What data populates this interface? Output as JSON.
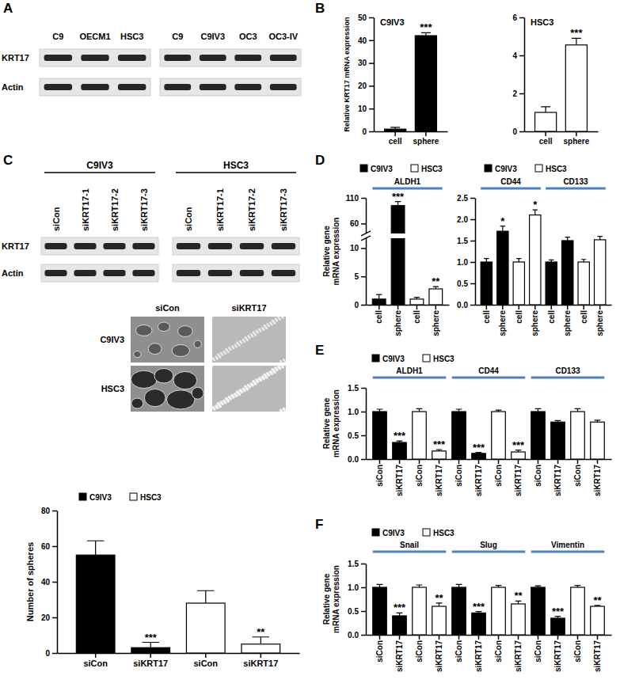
{
  "panel_letters": [
    "A",
    "B",
    "C",
    "D",
    "E",
    "F"
  ],
  "western_blots": [
    {
      "row_labels": [
        "KRT17",
        "Actin"
      ],
      "blots": [
        {
          "columns": [
            "C9",
            "OECM1",
            "HSC3"
          ]
        },
        {
          "columns": [
            "C9",
            "C9IV3",
            "OC3",
            "OC3-IV"
          ]
        }
      ]
    },
    {
      "row_labels": [
        "KRT17",
        "Actin"
      ],
      "blots": [
        {
          "group": "C9IV3",
          "columns": [
            "siCon",
            "siKRT17-1",
            "siKRT17-2",
            "siKRT17-3"
          ]
        },
        {
          "group": "HSC3",
          "columns": [
            "siCon",
            "siKRT17-1",
            "siKRT17-2",
            "siKRT17-3"
          ]
        }
      ]
    }
  ],
  "micrographs": {
    "columns": [
      "siCon",
      "siKRT17"
    ],
    "rows": [
      "C9IV3",
      "HSC3"
    ]
  },
  "chart_data": [
    {
      "type": "bar",
      "title": "C9IV3",
      "y_label": "Relative KRT17 mRNA expression",
      "categories": [
        "cell",
        "sphere"
      ],
      "ylim": [
        0,
        50
      ],
      "yticks": [
        0,
        10,
        20,
        30,
        40,
        50
      ],
      "series": [
        {
          "color": "#000000",
          "values": [
            1,
            42
          ],
          "errors": [
            0.8,
            1.3
          ],
          "significance": [
            null,
            "***"
          ]
        }
      ]
    },
    {
      "type": "bar",
      "title": "HSC3",
      "categories": [
        "cell",
        "sphere"
      ],
      "ylim": [
        0,
        6
      ],
      "yticks": [
        0,
        2,
        4,
        6
      ],
      "series": [
        {
          "color": "#ffffff",
          "values": [
            1,
            4.55
          ],
          "errors": [
            0.3,
            0.35
          ],
          "significance": [
            null,
            "***"
          ]
        }
      ]
    },
    {
      "type": "bar",
      "y_label": "Number of spheres",
      "legend": "top",
      "categories": [
        "siCon",
        "siKRT17",
        "siCon",
        "siKRT17"
      ],
      "ylim": [
        0,
        80
      ],
      "yticks": [
        0,
        20,
        40,
        60,
        80
      ],
      "series": [
        {
          "name": "C9IV3",
          "color": "#000000",
          "values": [
            55,
            3,
            null,
            null
          ],
          "errors": [
            8,
            3,
            null,
            null
          ],
          "significance": [
            null,
            "***",
            null,
            null
          ]
        },
        {
          "name": "HSC3",
          "color": "#ffffff",
          "values": [
            null,
            null,
            28,
            5
          ],
          "errors": [
            null,
            null,
            7,
            4
          ],
          "significance": [
            null,
            null,
            null,
            "**"
          ]
        }
      ]
    },
    {
      "type": "bar",
      "y_label": "Relative gene mRNA expression",
      "legend": "top",
      "groups": [
        "ALDH1"
      ],
      "categories": [
        "cell",
        "sphere",
        "cell",
        "sphere"
      ],
      "ylim": [
        0,
        110
      ],
      "ybreak": [
        10,
        60
      ],
      "yticks": [
        0,
        5,
        10,
        60,
        110
      ],
      "series": [
        {
          "name": "C9IV3",
          "color": "#000000",
          "values": [
            1,
            95,
            null,
            null
          ],
          "errors": [
            0.8,
            8,
            null,
            null
          ],
          "significance": [
            null,
            "***",
            null,
            null
          ]
        },
        {
          "name": "HSC3",
          "color": "#ffffff",
          "values": [
            null,
            null,
            1,
            2.8
          ],
          "errors": [
            null,
            null,
            0.3,
            0.4
          ],
          "significance": [
            null,
            null,
            null,
            "**"
          ]
        }
      ]
    },
    {
      "type": "bar",
      "legend": "top",
      "groups": [
        "CD44",
        "CD133"
      ],
      "categories": [
        "cell",
        "sphere",
        "cell",
        "sphere",
        "cell",
        "sphere",
        "cell",
        "sphere"
      ],
      "ylim": [
        0,
        2.5
      ],
      "yticks": [
        {
          "value": 0,
          "label": "0.0"
        },
        0.5,
        {
          "value": 1,
          "label": "1.0"
        },
        1.5,
        {
          "value": 2,
          "label": "2.0"
        },
        2.5
      ],
      "series": [
        {
          "name": "C9IV3",
          "color": "#000000",
          "values": [
            1,
            1.72,
            null,
            null,
            1,
            1.5,
            null,
            null
          ],
          "errors": [
            0.08,
            0.12,
            null,
            null,
            0.05,
            0.08,
            null,
            null
          ],
          "significance": [
            null,
            "*",
            null,
            null,
            null,
            null,
            null,
            null
          ]
        },
        {
          "name": "HSC3",
          "color": "#ffffff",
          "values": [
            null,
            null,
            1,
            2.1,
            null,
            null,
            1,
            1.52
          ],
          "errors": [
            null,
            null,
            0.08,
            0.12,
            null,
            null,
            0.06,
            0.08
          ],
          "significance": [
            null,
            null,
            null,
            "*",
            null,
            null,
            null,
            null
          ]
        }
      ]
    },
    {
      "type": "bar",
      "y_label": "Relative gene mRNA expression",
      "legend": "top",
      "groups": [
        "ALDH1",
        "CD44",
        "CD133"
      ],
      "categories": [
        "siCon",
        "siKRT17",
        "siCon",
        "siKRT17",
        "siCon",
        "siKRT17",
        "siCon",
        "siKRT17",
        "siCon",
        "siKRT17",
        "siCon",
        "siKRT17"
      ],
      "ylim": [
        0,
        1.5
      ],
      "yticks": [
        {
          "value": 0,
          "label": "0.0"
        },
        0.5,
        {
          "value": 1,
          "label": "1.0"
        },
        1.5
      ],
      "series": [
        {
          "name": "C9IV3",
          "color": "#000000",
          "values": [
            1,
            0.35,
            null,
            null,
            1,
            0.12,
            null,
            null,
            1,
            0.78,
            null,
            null
          ],
          "errors": [
            0.05,
            0.03,
            null,
            null,
            0.05,
            0.02,
            null,
            null,
            0.06,
            0.03,
            null,
            null
          ],
          "significance": [
            null,
            "***",
            null,
            null,
            null,
            "***",
            null,
            null,
            null,
            null,
            null,
            null
          ]
        },
        {
          "name": "HSC3",
          "color": "#ffffff",
          "values": [
            null,
            null,
            1,
            0.17,
            null,
            null,
            1,
            0.15,
            null,
            null,
            1,
            0.78
          ],
          "errors": [
            null,
            null,
            0.06,
            0.03,
            null,
            null,
            0.03,
            0.04,
            null,
            null,
            0.06,
            0.04
          ],
          "significance": [
            null,
            null,
            null,
            "***",
            null,
            null,
            null,
            "***",
            null,
            null,
            null,
            null
          ]
        }
      ]
    },
    {
      "type": "bar",
      "y_label": "Relative gene mRNA expression",
      "legend": "top",
      "groups": [
        "Snail",
        "Slug",
        "Vimentin"
      ],
      "categories": [
        "siCon",
        "siKRT17",
        "siCon",
        "siKRT17",
        "siCon",
        "siKRT17",
        "siCon",
        "siKRT17",
        "siCon",
        "siKRT17",
        "siCon",
        "siKRT17"
      ],
      "ylim": [
        0,
        1.5
      ],
      "yticks": [
        {
          "value": 0,
          "label": "0.0"
        },
        0.5,
        {
          "value": 1,
          "label": "1.0"
        },
        1.5
      ],
      "series": [
        {
          "name": "C9IV3",
          "color": "#000000",
          "values": [
            1,
            0.4,
            null,
            null,
            1,
            0.46,
            null,
            null,
            1,
            0.35,
            null,
            null
          ],
          "errors": [
            0.06,
            0.06,
            null,
            null,
            0.06,
            0.03,
            null,
            null,
            0.03,
            0.04,
            null,
            null
          ],
          "significance": [
            null,
            "***",
            null,
            null,
            null,
            "***",
            null,
            null,
            null,
            "***",
            null,
            null
          ]
        },
        {
          "name": "HSC3",
          "color": "#ffffff",
          "values": [
            null,
            null,
            1,
            0.6,
            null,
            null,
            1,
            0.65,
            null,
            null,
            1,
            0.6
          ],
          "errors": [
            null,
            null,
            0.05,
            0.07,
            null,
            null,
            0.04,
            0.06,
            null,
            null,
            0.04,
            0.02
          ],
          "significance": [
            null,
            null,
            null,
            "**",
            null,
            null,
            null,
            "**",
            null,
            null,
            null,
            "**"
          ]
        }
      ]
    }
  ]
}
